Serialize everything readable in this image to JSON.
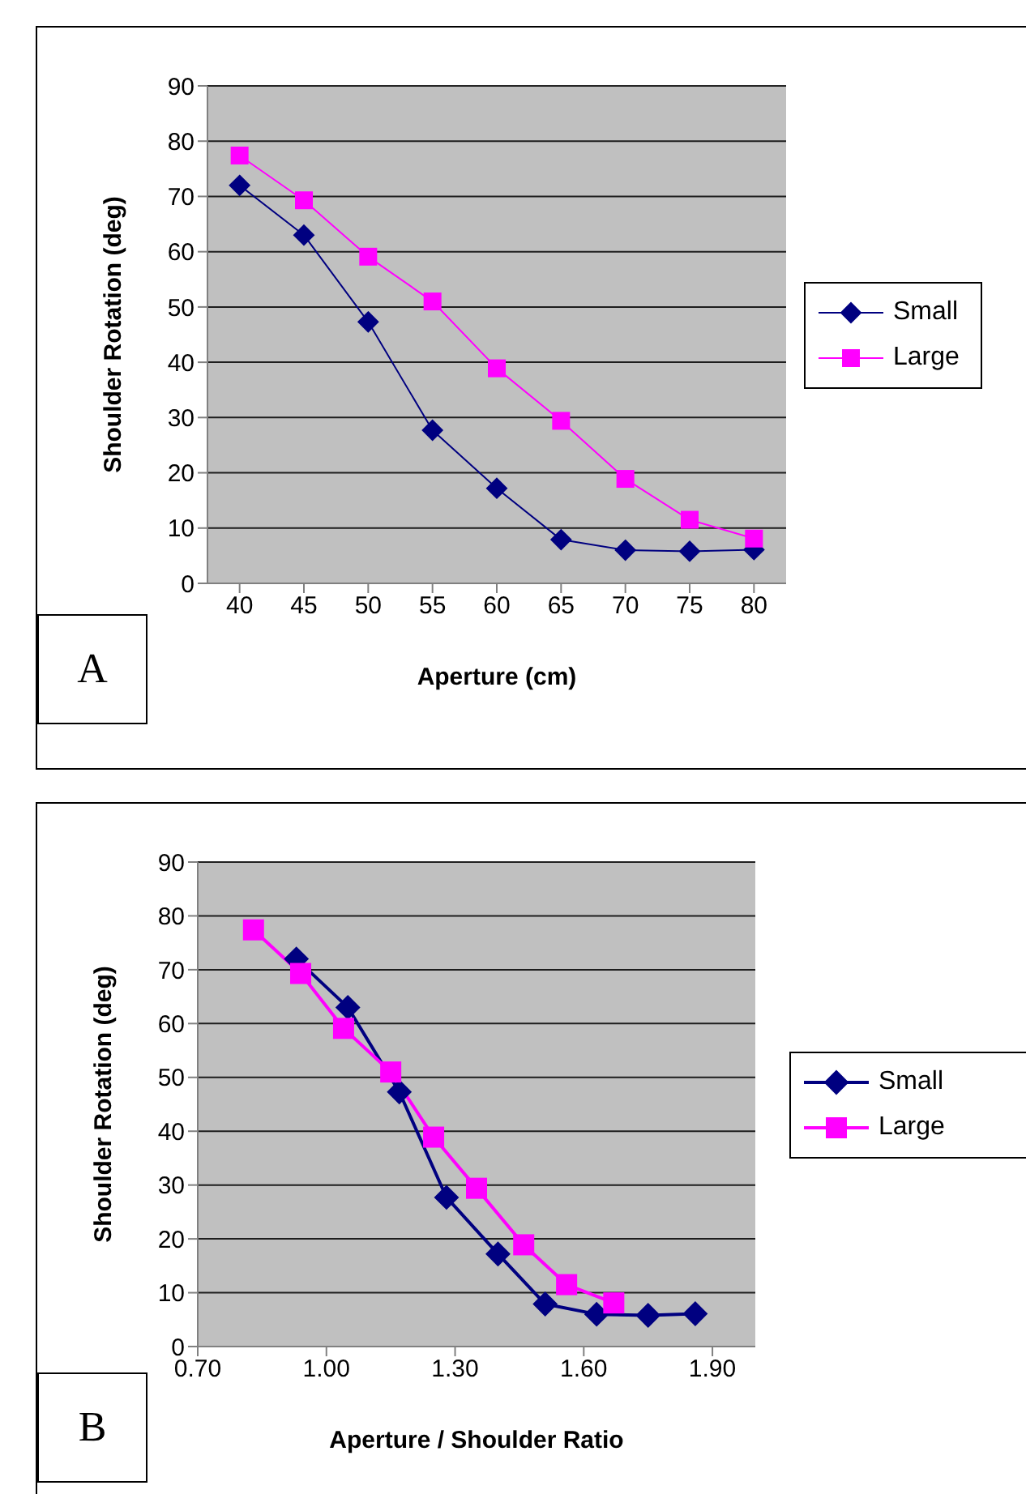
{
  "chart_data": [
    {
      "type": "line",
      "categories": [
        "40",
        "45",
        "50",
        "55",
        "60",
        "65",
        "70",
        "75",
        "80"
      ],
      "xlabel": "Aperture (cm)",
      "ylabel": "Shoulder Rotation (deg)",
      "ylim": [
        0,
        90
      ],
      "yticks": [
        0,
        10,
        20,
        30,
        40,
        50,
        60,
        70,
        80,
        90
      ],
      "grid": "y",
      "legend": "right",
      "annotations": [
        "A"
      ],
      "series": [
        {
          "name": "Small",
          "color": "#000080",
          "marker": "diamond",
          "values": [
            72,
            63,
            47.3,
            27.7,
            17.2,
            7.9,
            6,
            5.8,
            6.1
          ]
        },
        {
          "name": "Large",
          "color": "#ff00ff",
          "marker": "square",
          "values": [
            77.4,
            69.3,
            59.1,
            51,
            38.9,
            29.4,
            18.9,
            11.5,
            8.1
          ]
        }
      ]
    },
    {
      "type": "line",
      "xlabel": "Aperture / Shoulder Ratio",
      "ylabel": "Shoulder Rotation (deg)",
      "xlim": [
        0.7,
        2.0
      ],
      "xticks": [
        {
          "value": 0.7,
          "label": "0.70"
        },
        {
          "value": 1.0,
          "label": "1.00"
        },
        {
          "value": 1.3,
          "label": "1.30"
        },
        {
          "value": 1.6,
          "label": "1.60"
        },
        {
          "value": 1.9,
          "label": "1.90"
        }
      ],
      "ylim": [
        0,
        90
      ],
      "yticks": [
        0,
        10,
        20,
        30,
        40,
        50,
        60,
        70,
        80,
        90
      ],
      "grid": "y",
      "legend": "right",
      "annotations": [
        "B"
      ],
      "series": [
        {
          "name": "Small",
          "color": "#000080",
          "marker": "diamond",
          "x": [
            0.93,
            1.05,
            1.17,
            1.28,
            1.4,
            1.51,
            1.63,
            1.75,
            1.86
          ],
          "values": [
            72,
            63,
            47.3,
            27.7,
            17.2,
            7.9,
            6,
            5.8,
            6.1
          ]
        },
        {
          "name": "Large",
          "color": "#ff00ff",
          "marker": "square",
          "x": [
            0.83,
            0.94,
            1.04,
            1.15,
            1.25,
            1.35,
            1.46,
            1.56,
            1.67
          ],
          "values": [
            77.4,
            69.3,
            59.1,
            51,
            38.9,
            29.4,
            18.9,
            11.5,
            8.1
          ]
        }
      ]
    }
  ]
}
